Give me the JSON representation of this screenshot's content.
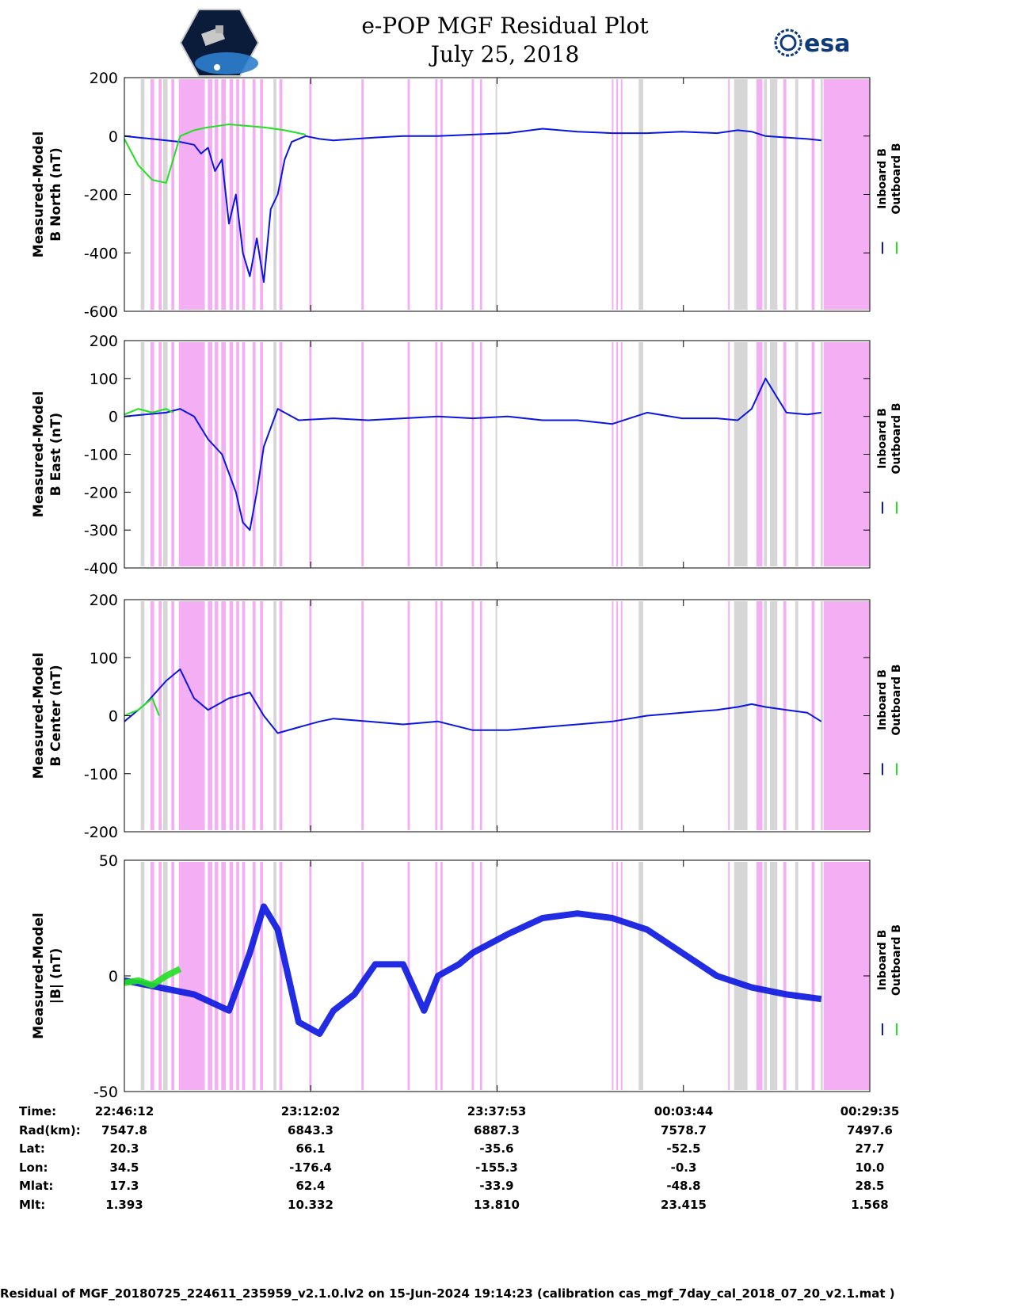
{
  "header": {
    "title": "e-POP MGF Residual Plot",
    "date": "July 25, 2018",
    "logo_left": "cassiope-mission-patch",
    "logo_right": "esa"
  },
  "colors": {
    "inboard": "#0a16e0",
    "outboard": "#22e022",
    "shade_pink": "#f4aef4",
    "shade_gray": "#d6d6d6"
  },
  "chart_data": [
    {
      "type": "line",
      "ylabel": [
        "Measured-Model",
        "B North (nT)"
      ],
      "ylim": [
        -600,
        200
      ],
      "yticks": [
        200,
        0,
        -200,
        -400,
        -600
      ],
      "legend": [
        "Inboard B",
        "Outboard B"
      ],
      "series": [
        {
          "name": "Inboard B",
          "x": [
            0.0,
            0.02,
            0.04,
            0.06,
            0.08,
            0.1,
            0.11,
            0.12,
            0.13,
            0.14,
            0.15,
            0.16,
            0.17,
            0.18,
            0.19,
            0.2,
            0.21,
            0.22,
            0.23,
            0.24,
            0.26,
            0.28,
            0.3,
            0.33,
            0.36,
            0.4,
            0.45,
            0.5,
            0.55,
            0.6,
            0.65,
            0.7,
            0.75,
            0.8,
            0.85,
            0.88,
            0.9,
            0.92,
            0.95,
            0.98,
            1.0
          ],
          "y": [
            0,
            -5,
            -10,
            -15,
            -20,
            -30,
            -60,
            -40,
            -120,
            -80,
            -300,
            -200,
            -400,
            -480,
            -350,
            -500,
            -250,
            -200,
            -80,
            -20,
            0,
            -10,
            -15,
            -10,
            -5,
            0,
            0,
            5,
            10,
            25,
            15,
            10,
            10,
            15,
            10,
            20,
            15,
            0,
            -5,
            -10,
            -15
          ]
        },
        {
          "name": "Outboard B",
          "x": [
            0.0,
            0.02,
            0.04,
            0.06,
            0.08,
            0.1,
            0.12,
            0.15,
            0.2,
            0.23,
            0.26
          ],
          "y": [
            -10,
            -100,
            -150,
            -160,
            0,
            20,
            30,
            40,
            30,
            20,
            5
          ]
        }
      ]
    },
    {
      "type": "line",
      "ylabel": [
        "Measured-Model",
        "B East (nT)"
      ],
      "ylim": [
        -400,
        200
      ],
      "yticks": [
        200,
        100,
        0,
        -100,
        -200,
        -300,
        -400
      ],
      "legend": [
        "Inboard B",
        "Outboard B"
      ],
      "series": [
        {
          "name": "Inboard B",
          "x": [
            0.0,
            0.03,
            0.06,
            0.08,
            0.1,
            0.12,
            0.14,
            0.16,
            0.17,
            0.18,
            0.19,
            0.2,
            0.22,
            0.25,
            0.3,
            0.35,
            0.4,
            0.45,
            0.5,
            0.55,
            0.6,
            0.65,
            0.7,
            0.75,
            0.8,
            0.85,
            0.88,
            0.9,
            0.92,
            0.95,
            0.98,
            1.0
          ],
          "y": [
            0,
            5,
            10,
            20,
            0,
            -60,
            -100,
            -200,
            -280,
            -300,
            -200,
            -80,
            20,
            -10,
            -5,
            -10,
            -5,
            0,
            -5,
            0,
            -10,
            -10,
            -20,
            10,
            -5,
            -5,
            -10,
            20,
            100,
            10,
            5,
            10
          ]
        },
        {
          "name": "Outboard B",
          "x": [
            0.0,
            0.02,
            0.04,
            0.06,
            0.07
          ],
          "y": [
            5,
            20,
            10,
            20,
            10
          ]
        }
      ]
    },
    {
      "type": "line",
      "ylabel": [
        "Measured-Model",
        "B Center (nT)"
      ],
      "ylim": [
        -200,
        200
      ],
      "yticks": [
        200,
        100,
        0,
        -100,
        -200
      ],
      "legend": [
        "Inboard B",
        "Outboard B"
      ],
      "series": [
        {
          "name": "Inboard B",
          "x": [
            0.0,
            0.03,
            0.06,
            0.08,
            0.1,
            0.12,
            0.15,
            0.18,
            0.2,
            0.22,
            0.25,
            0.28,
            0.3,
            0.35,
            0.4,
            0.45,
            0.5,
            0.55,
            0.6,
            0.65,
            0.7,
            0.75,
            0.8,
            0.85,
            0.88,
            0.9,
            0.92,
            0.95,
            0.98,
            1.0
          ],
          "y": [
            -10,
            20,
            60,
            80,
            30,
            10,
            30,
            40,
            0,
            -30,
            -20,
            -10,
            -5,
            -10,
            -15,
            -10,
            -25,
            -25,
            -20,
            -15,
            -10,
            0,
            5,
            10,
            15,
            20,
            15,
            10,
            5,
            -10
          ]
        },
        {
          "name": "Outboard B",
          "x": [
            0.0,
            0.02,
            0.04,
            0.05
          ],
          "y": [
            0,
            10,
            30,
            0
          ]
        }
      ]
    },
    {
      "type": "line",
      "ylabel": [
        "Measured-Model",
        "|B| (nT)"
      ],
      "ylim": [
        -50,
        50
      ],
      "yticks": [
        50,
        0,
        -50
      ],
      "legend": [
        "Inboard B",
        "Outboard B"
      ],
      "series": [
        {
          "name": "Inboard B",
          "x": [
            0.0,
            0.05,
            0.1,
            0.15,
            0.18,
            0.2,
            0.22,
            0.25,
            0.28,
            0.3,
            0.33,
            0.36,
            0.4,
            0.43,
            0.45,
            0.48,
            0.5,
            0.55,
            0.6,
            0.65,
            0.7,
            0.75,
            0.8,
            0.85,
            0.9,
            0.95,
            1.0
          ],
          "y": [
            -2,
            -5,
            -8,
            -15,
            10,
            30,
            20,
            -20,
            -25,
            -15,
            -8,
            5,
            5,
            -15,
            0,
            5,
            10,
            18,
            25,
            27,
            25,
            20,
            10,
            0,
            -5,
            -8,
            -10
          ]
        },
        {
          "name": "Outboard B",
          "x": [
            0.0,
            0.02,
            0.04,
            0.06,
            0.08
          ],
          "y": [
            -3,
            -2,
            -4,
            0,
            3
          ]
        }
      ]
    }
  ],
  "x_axis": {
    "labels": [
      {
        "label": "Time:",
        "values": [
          "22:46:12",
          "23:12:02",
          "23:37:53",
          "00:03:44",
          "00:29:35"
        ]
      },
      {
        "label": "Rad(km):",
        "values": [
          "7547.8",
          "6843.3",
          "6887.3",
          "7578.7",
          "7497.6"
        ]
      },
      {
        "label": "Lat:",
        "values": [
          "20.3",
          "66.1",
          "-35.6",
          "-52.5",
          "27.7"
        ]
      },
      {
        "label": "Lon:",
        "values": [
          "34.5",
          "-176.4",
          "-155.3",
          "-0.3",
          "10.0"
        ]
      },
      {
        "label": "Mlat:",
        "values": [
          "17.3",
          "62.4",
          "-33.9",
          "-48.8",
          "28.5"
        ]
      },
      {
        "label": "Mlt:",
        "values": [
          "1.393",
          "10.332",
          "13.810",
          "23.415",
          "1.568"
        ]
      }
    ]
  },
  "footer": "Residual of MGF_20180725_224611_235959_v2.1.0.lv2 on 15-Jun-2024 19:14:23 (calibration cas_mgf_7day_cal_2018_07_20_v2.1.mat )"
}
